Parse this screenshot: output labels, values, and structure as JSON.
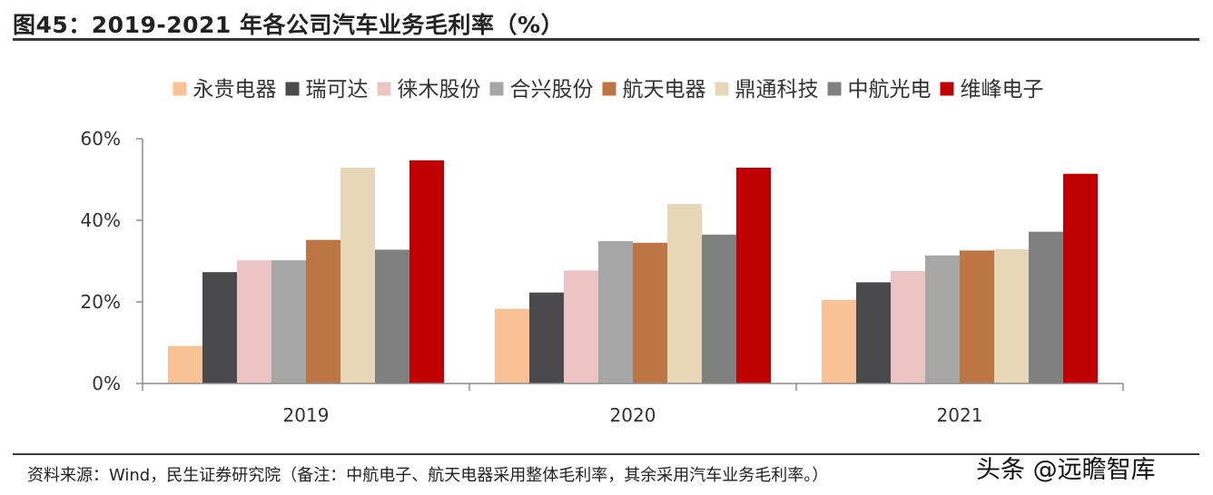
{
  "header": {
    "title": "图45：2019-2021 年各公司汽车业务毛利率（%）"
  },
  "footer": {
    "source": "资料来源：Wind，民生证券研究院（备注：中航电子、航天电器采用整体毛利率，其余采用汽车业务毛利率。）",
    "watermark": "头条 @远瞻智库"
  },
  "chart_data": {
    "type": "bar",
    "title": "2019-2021 年各公司汽车业务毛利率（%）",
    "categories": [
      "2019",
      "2020",
      "2021"
    ],
    "ylim": [
      0,
      60
    ],
    "yticks": [
      0,
      20,
      40,
      60
    ],
    "ytick_labels": [
      "0%",
      "20%",
      "40%",
      "60%"
    ],
    "xlabel": "",
    "ylabel": "",
    "legend_position": "top",
    "series": [
      {
        "name": "永贵电器",
        "color": "#F8C196",
        "values": [
          9.2,
          18.3,
          20.5
        ]
      },
      {
        "name": "瑞可达",
        "color": "#4A4A4C",
        "values": [
          27.3,
          22.3,
          24.8
        ]
      },
      {
        "name": "徕木股份",
        "color": "#EDC4C4",
        "values": [
          30.2,
          27.7,
          27.6
        ]
      },
      {
        "name": "合兴股份",
        "color": "#A6A6A6",
        "values": [
          30.2,
          34.9,
          31.4
        ]
      },
      {
        "name": "航天电器",
        "color": "#BD7643",
        "values": [
          35.2,
          34.5,
          32.6
        ]
      },
      {
        "name": "鼎通科技",
        "color": "#E8D7B6",
        "values": [
          52.9,
          44.0,
          32.9
        ]
      },
      {
        "name": "中航光电",
        "color": "#808080",
        "values": [
          32.8,
          36.5,
          37.2
        ]
      },
      {
        "name": "维峰电子",
        "color": "#C00000",
        "values": [
          54.7,
          52.9,
          51.4
        ]
      }
    ]
  }
}
